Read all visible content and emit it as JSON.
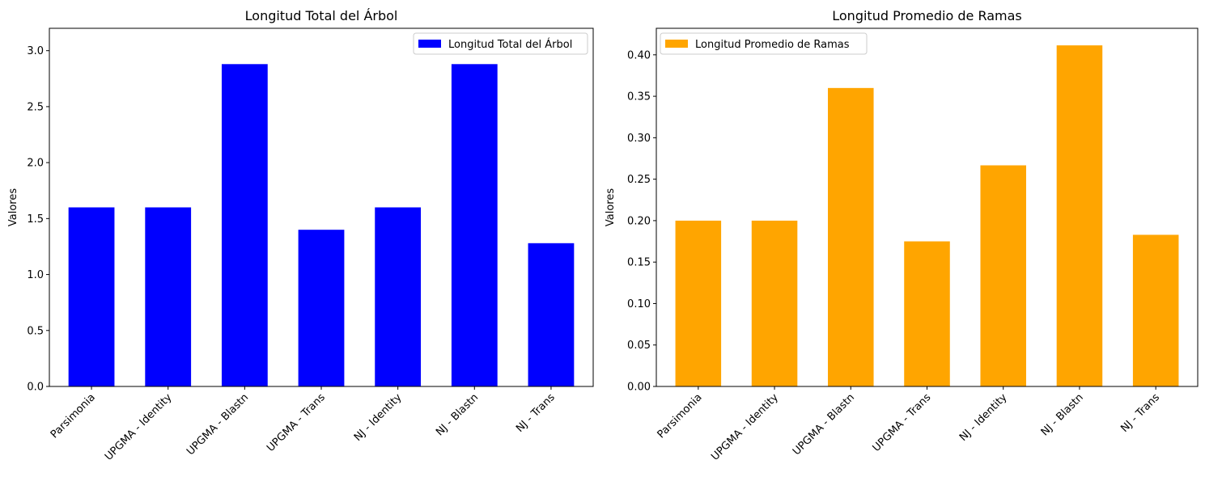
{
  "chart_data": [
    {
      "type": "bar",
      "title": "Longitud Total del Árbol",
      "xlabel": "",
      "ylabel": "Valores",
      "categories": [
        "Parsimonia",
        "UPGMA - Identity",
        "UPGMA - Blastn",
        "UPGMA - Trans",
        "NJ - Identity",
        "NJ - Blastn",
        "NJ - Trans"
      ],
      "series": [
        {
          "name": "Longitud Total del Árbol",
          "color": "#0000ff",
          "values": [
            1.6,
            1.6,
            2.88,
            1.4,
            1.6,
            2.88,
            1.28
          ]
        }
      ],
      "ylim": [
        0,
        3.2
      ],
      "yticks": [
        "0.0",
        "0.5",
        "1.0",
        "1.5",
        "2.0",
        "2.5",
        "3.0"
      ],
      "ytick_values": [
        0,
        0.5,
        1.0,
        1.5,
        2.0,
        2.5,
        3.0
      ],
      "legend": "top-right",
      "grid": false
    },
    {
      "type": "bar",
      "title": "Longitud Promedio de Ramas",
      "xlabel": "",
      "ylabel": "Valores",
      "categories": [
        "Parsimonia",
        "UPGMA - Identity",
        "UPGMA - Blastn",
        "UPGMA - Trans",
        "NJ - Identity",
        "NJ - Blastn",
        "NJ - Trans"
      ],
      "series": [
        {
          "name": "Longitud Promedio de Ramas",
          "color": "#ffa500",
          "values": [
            0.2,
            0.2,
            0.36,
            0.175,
            0.2667,
            0.4114,
            0.1829
          ]
        }
      ],
      "ylim": [
        0,
        0.432
      ],
      "yticks": [
        "0.00",
        "0.05",
        "0.10",
        "0.15",
        "0.20",
        "0.25",
        "0.30",
        "0.35",
        "0.40"
      ],
      "ytick_values": [
        0,
        0.05,
        0.1,
        0.15,
        0.2,
        0.25,
        0.3,
        0.35,
        0.4
      ],
      "legend": "top-left",
      "grid": false
    }
  ]
}
